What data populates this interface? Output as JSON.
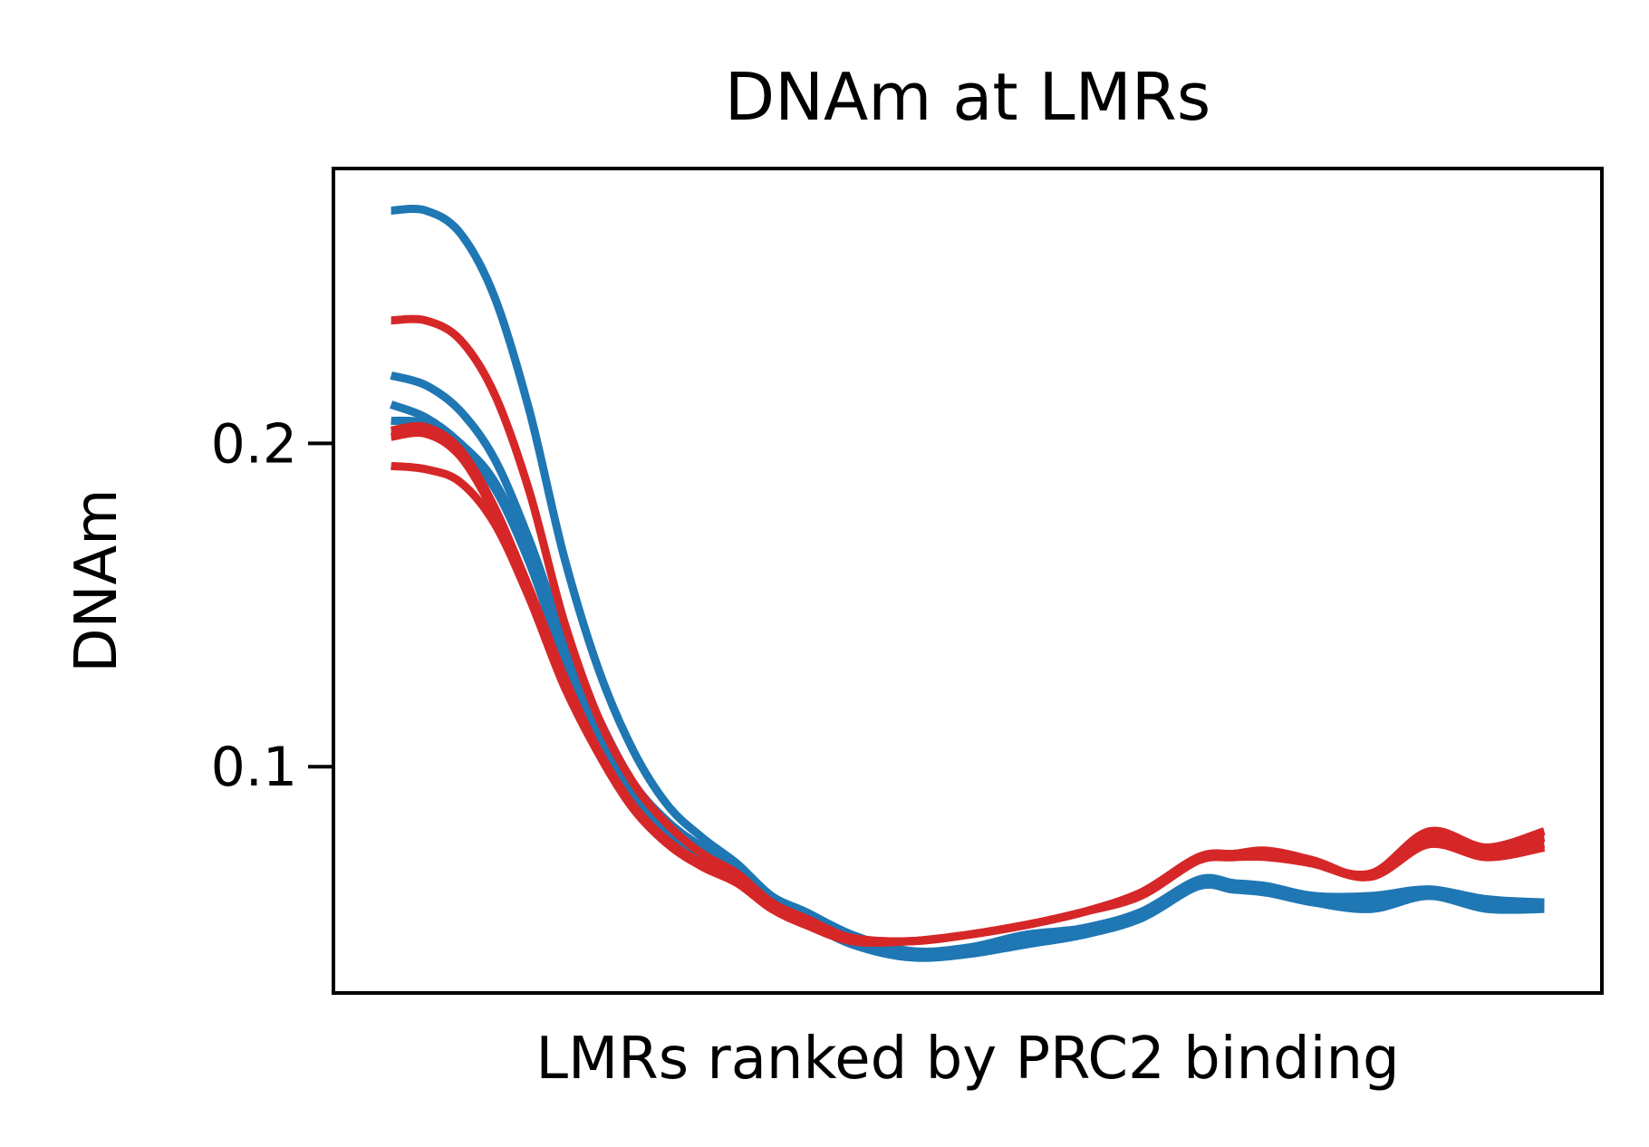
{
  "chart_data": {
    "type": "line",
    "title": "DNAm at LMRs",
    "xlabel": "LMRs ranked by PRC2 binding",
    "ylabel": "DNAm",
    "xlim": [
      -5,
      105
    ],
    "ylim": [
      0.03,
      0.285
    ],
    "yticks": [
      0.1,
      0.2
    ],
    "ytick_labels": [
      "0.1",
      "0.2"
    ],
    "show_xticks": false,
    "grid": false,
    "legend": "none",
    "colors": {
      "blue": "#1f77b4",
      "red": "#d62728"
    },
    "x": [
      0,
      3,
      6,
      9,
      12,
      15,
      18,
      21,
      24,
      27,
      30,
      33,
      36,
      40,
      45,
      50,
      55,
      60,
      65,
      70,
      73,
      76,
      80,
      85,
      90,
      95,
      100
    ],
    "series": [
      {
        "color": "#1f77b4",
        "values": [
          0.272,
          0.272,
          0.265,
          0.245,
          0.21,
          0.165,
          0.13,
          0.105,
          0.088,
          0.078,
          0.07,
          0.06,
          0.055,
          0.048,
          0.043,
          0.044,
          0.048,
          0.05,
          0.055,
          0.065,
          0.064,
          0.063,
          0.06,
          0.06,
          0.062,
          0.059,
          0.058
        ]
      },
      {
        "color": "#1f77b4",
        "values": [
          0.221,
          0.218,
          0.21,
          0.195,
          0.17,
          0.14,
          0.115,
          0.095,
          0.083,
          0.075,
          0.068,
          0.059,
          0.054,
          0.047,
          0.042,
          0.043,
          0.047,
          0.05,
          0.055,
          0.065,
          0.064,
          0.062,
          0.06,
          0.058,
          0.062,
          0.058,
          0.058
        ]
      },
      {
        "color": "#1f77b4",
        "values": [
          0.212,
          0.208,
          0.2,
          0.188,
          0.165,
          0.135,
          0.11,
          0.092,
          0.08,
          0.072,
          0.066,
          0.058,
          0.053,
          0.046,
          0.042,
          0.043,
          0.046,
          0.049,
          0.054,
          0.064,
          0.063,
          0.062,
          0.059,
          0.057,
          0.061,
          0.057,
          0.057
        ]
      },
      {
        "color": "#1f77b4",
        "values": [
          0.207,
          0.206,
          0.198,
          0.186,
          0.163,
          0.133,
          0.108,
          0.09,
          0.079,
          0.071,
          0.065,
          0.057,
          0.052,
          0.045,
          0.041,
          0.042,
          0.045,
          0.048,
          0.053,
          0.063,
          0.062,
          0.061,
          0.058,
          0.056,
          0.06,
          0.056,
          0.056
        ]
      },
      {
        "color": "#d62728",
        "values": [
          0.238,
          0.238,
          0.232,
          0.215,
          0.185,
          0.145,
          0.115,
          0.095,
          0.082,
          0.073,
          0.067,
          0.058,
          0.053,
          0.047,
          0.046,
          0.048,
          0.051,
          0.055,
          0.061,
          0.072,
          0.073,
          0.073,
          0.07,
          0.067,
          0.08,
          0.075,
          0.08
        ]
      },
      {
        "color": "#d62728",
        "values": [
          0.204,
          0.205,
          0.198,
          0.18,
          0.155,
          0.128,
          0.105,
          0.088,
          0.077,
          0.07,
          0.065,
          0.057,
          0.052,
          0.047,
          0.046,
          0.048,
          0.051,
          0.055,
          0.061,
          0.072,
          0.073,
          0.074,
          0.071,
          0.066,
          0.078,
          0.074,
          0.078
        ]
      },
      {
        "color": "#d62728",
        "values": [
          0.202,
          0.203,
          0.196,
          0.178,
          0.153,
          0.126,
          0.104,
          0.087,
          0.077,
          0.07,
          0.065,
          0.057,
          0.052,
          0.047,
          0.046,
          0.048,
          0.051,
          0.055,
          0.061,
          0.071,
          0.072,
          0.073,
          0.07,
          0.066,
          0.077,
          0.073,
          0.076
        ]
      },
      {
        "color": "#d62728",
        "values": [
          0.193,
          0.192,
          0.188,
          0.175,
          0.152,
          0.125,
          0.104,
          0.087,
          0.076,
          0.069,
          0.064,
          0.056,
          0.051,
          0.046,
          0.046,
          0.048,
          0.051,
          0.055,
          0.06,
          0.071,
          0.072,
          0.072,
          0.07,
          0.066,
          0.076,
          0.072,
          0.075
        ]
      }
    ]
  }
}
